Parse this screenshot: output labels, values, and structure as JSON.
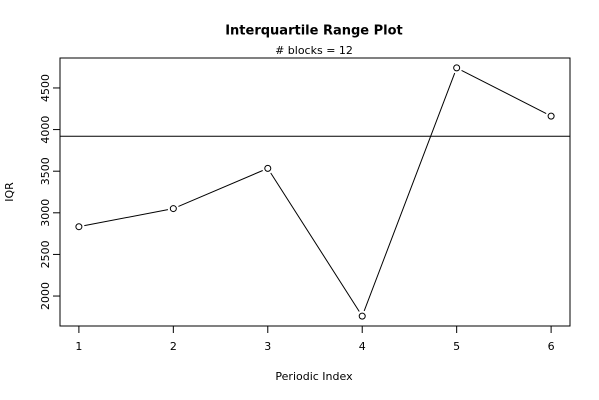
{
  "chart_data": {
    "type": "line",
    "title": "Interquartile Range Plot",
    "subtitle": "# blocks =  12",
    "x_label": "Periodic Index",
    "y_label": "IQR",
    "x": [
      1,
      2,
      3,
      4,
      5,
      6
    ],
    "values": [
      2833,
      3051,
      3534,
      1759,
      4741,
      4162
    ],
    "hline": 3920,
    "color": "#000000",
    "xlim": [
      0.8,
      6.2
    ],
    "xticks": [
      1,
      2,
      3,
      4,
      5,
      6
    ],
    "ylim": [
      1640,
      4860
    ],
    "yticks": [
      2000,
      2500,
      3000,
      3500,
      4000,
      4500
    ]
  }
}
